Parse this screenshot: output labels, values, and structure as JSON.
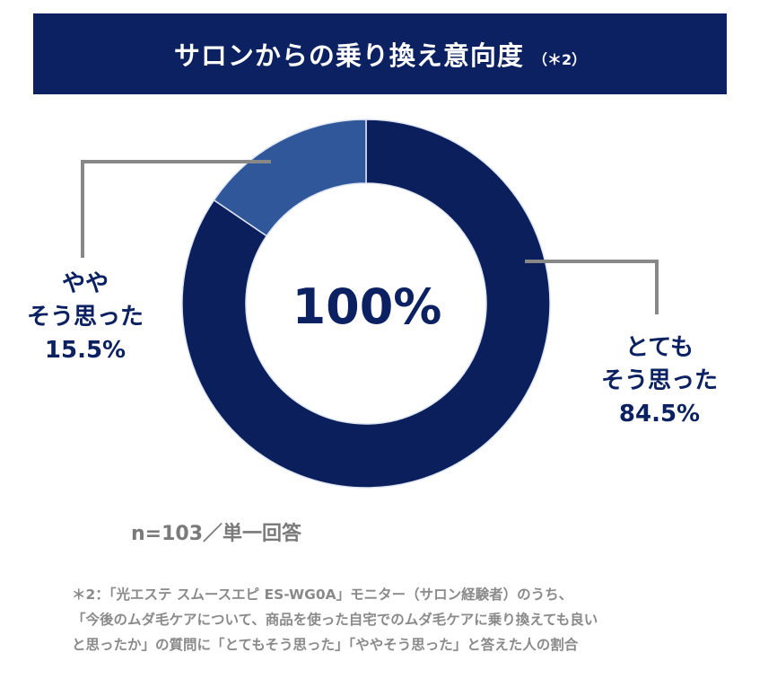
{
  "header": {
    "title": "サロンからの乗り換え意向度",
    "note": "（＊2）"
  },
  "chart_data": {
    "type": "pie",
    "donut": true,
    "center_label": "100%",
    "slices": [
      {
        "label": "とてもそう思った",
        "label_lines": [
          "とても",
          "そう思った"
        ],
        "value": 84.5,
        "value_label": "84.5%",
        "color": "#0a1f5c"
      },
      {
        "label": "ややそう思った",
        "label_lines": [
          "やや",
          "そう思った"
        ],
        "value": 15.5,
        "value_label": "15.5%",
        "color": "#30579a"
      }
    ],
    "start": "top",
    "direction": "clockwise"
  },
  "sample": "n=103／単一回答",
  "footnote": [
    "＊2：「光エステ スムースエピ ES-WG0A」モニター（サロン経験者）のうち、",
    "「今後のムダ毛ケアについて、商品を使った自宅でのムダ毛ケアに乗り換えても良い",
    "と思ったか」の質問に「とてもそう思った」「ややそう思った」と答えた人の割合"
  ]
}
